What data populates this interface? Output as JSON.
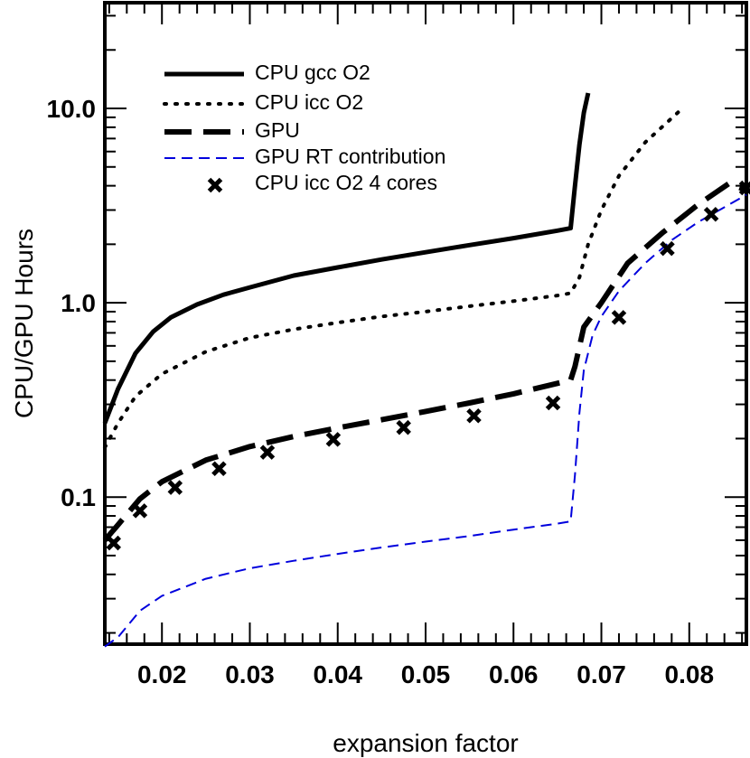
{
  "chart_data": {
    "type": "line",
    "xlabel": "expansion factor",
    "ylabel": "CPU/GPU Hours",
    "xlim": [
      0.0135,
      0.0865
    ],
    "ylim": [
      0.0175,
      35
    ],
    "yscale": "log",
    "x_ticks": [
      {
        "value": 0.02,
        "label": "0.02"
      },
      {
        "value": 0.03,
        "label": "0.03"
      },
      {
        "value": 0.04,
        "label": "0.04"
      },
      {
        "value": 0.05,
        "label": "0.05"
      },
      {
        "value": 0.06,
        "label": "0.06"
      },
      {
        "value": 0.07,
        "label": "0.07"
      },
      {
        "value": 0.08,
        "label": "0.08"
      }
    ],
    "y_ticks": [
      {
        "value": 0.1,
        "label": "0.1"
      },
      {
        "value": 1.0,
        "label": "1.0"
      },
      {
        "value": 10.0,
        "label": "10.0"
      }
    ],
    "grid": false,
    "legend_position": "top-left",
    "series": [
      {
        "name": "CPU gcc O2",
        "color": "#000000",
        "style": "solid",
        "x": [
          0.0135,
          0.015,
          0.017,
          0.019,
          0.021,
          0.024,
          0.027,
          0.03,
          0.035,
          0.04,
          0.045,
          0.05,
          0.055,
          0.06,
          0.065,
          0.0665,
          0.067,
          0.0675,
          0.068,
          0.0685
        ],
        "y": [
          0.24,
          0.36,
          0.55,
          0.71,
          0.84,
          0.98,
          1.1,
          1.2,
          1.38,
          1.52,
          1.67,
          1.82,
          1.98,
          2.15,
          2.35,
          2.42,
          4.0,
          6.5,
          9.5,
          12.0
        ]
      },
      {
        "name": "CPU icc O2",
        "color": "#000000",
        "style": "dotted",
        "x": [
          0.0135,
          0.015,
          0.017,
          0.02,
          0.025,
          0.03,
          0.035,
          0.04,
          0.045,
          0.05,
          0.055,
          0.06,
          0.065,
          0.0665,
          0.0675,
          0.0685,
          0.07,
          0.072,
          0.075,
          0.079
        ],
        "y": [
          0.18,
          0.24,
          0.33,
          0.43,
          0.56,
          0.66,
          0.73,
          0.79,
          0.85,
          0.9,
          0.96,
          1.02,
          1.09,
          1.12,
          1.35,
          2.0,
          3.0,
          4.5,
          6.7,
          9.8
        ]
      },
      {
        "name": "GPU",
        "color": "#000000",
        "style": "longdash",
        "x": [
          0.0135,
          0.015,
          0.0175,
          0.02,
          0.025,
          0.03,
          0.035,
          0.04,
          0.045,
          0.05,
          0.055,
          0.06,
          0.065,
          0.0665,
          0.067,
          0.068,
          0.07,
          0.073,
          0.077,
          0.081,
          0.0845,
          0.0865
        ],
        "y": [
          0.06,
          0.072,
          0.098,
          0.12,
          0.155,
          0.182,
          0.205,
          0.227,
          0.25,
          0.276,
          0.305,
          0.34,
          0.385,
          0.4,
          0.47,
          0.75,
          1.0,
          1.6,
          2.3,
          3.2,
          4.1,
          3.8
        ]
      },
      {
        "name": "GPU RT contribution",
        "color": "#0000dd",
        "style": "dashed",
        "x": [
          0.0135,
          0.015,
          0.0175,
          0.02,
          0.025,
          0.03,
          0.035,
          0.04,
          0.045,
          0.05,
          0.055,
          0.06,
          0.065,
          0.0665,
          0.067,
          0.0675,
          0.068,
          0.069,
          0.07,
          0.072,
          0.075,
          0.078,
          0.081,
          0.084,
          0.0865
        ],
        "y": [
          0.017,
          0.019,
          0.026,
          0.031,
          0.038,
          0.043,
          0.047,
          0.051,
          0.055,
          0.059,
          0.063,
          0.068,
          0.073,
          0.075,
          0.13,
          0.27,
          0.45,
          0.68,
          0.85,
          1.15,
          1.6,
          2.1,
          2.6,
          3.1,
          3.6
        ]
      },
      {
        "name": "CPU icc O2 4 cores",
        "color": "#000000",
        "style": "marker-x",
        "x": [
          0.0145,
          0.0175,
          0.0215,
          0.0265,
          0.032,
          0.0395,
          0.0475,
          0.0555,
          0.0645,
          0.072,
          0.0775,
          0.0825,
          0.0865
        ],
        "y": [
          0.058,
          0.085,
          0.112,
          0.14,
          0.17,
          0.198,
          0.228,
          0.262,
          0.305,
          0.84,
          1.9,
          2.85,
          3.9
        ]
      }
    ]
  }
}
